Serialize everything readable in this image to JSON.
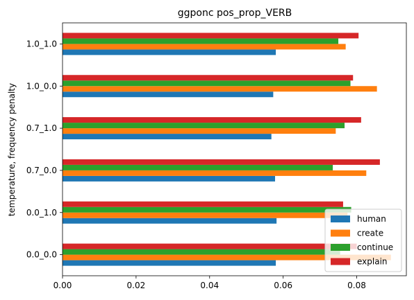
{
  "chart_data": {
    "type": "bar",
    "orientation": "horizontal",
    "title": "ggponc pos_prop_VERB",
    "xlabel": "",
    "ylabel": "temperature, frequency penalty",
    "categories": [
      "0.0_0.0",
      "0.0_1.0",
      "0.7_0.0",
      "0.7_1.0",
      "1.0_0.0",
      "1.0_1.0"
    ],
    "xlim": [
      0,
      0.0935
    ],
    "xticks": [
      "0.00",
      "0.02",
      "0.04",
      "0.06",
      "0.08"
    ],
    "grid": false,
    "legend_position": "lower right",
    "series": [
      {
        "name": "human",
        "color": "#1f77b4",
        "values": [
          0.058,
          0.0582,
          0.0578,
          0.0568,
          0.0573,
          0.058
        ]
      },
      {
        "name": "create",
        "color": "#ff7f0e",
        "values": [
          0.0893,
          0.0775,
          0.0826,
          0.0743,
          0.0855,
          0.077
        ]
      },
      {
        "name": "continue",
        "color": "#2ca02c",
        "values": [
          0.0755,
          0.0785,
          0.0735,
          0.0767,
          0.0783,
          0.075
        ]
      },
      {
        "name": "explain",
        "color": "#d62728",
        "values": [
          0.08,
          0.0763,
          0.0863,
          0.0812,
          0.079,
          0.0805
        ]
      }
    ]
  }
}
